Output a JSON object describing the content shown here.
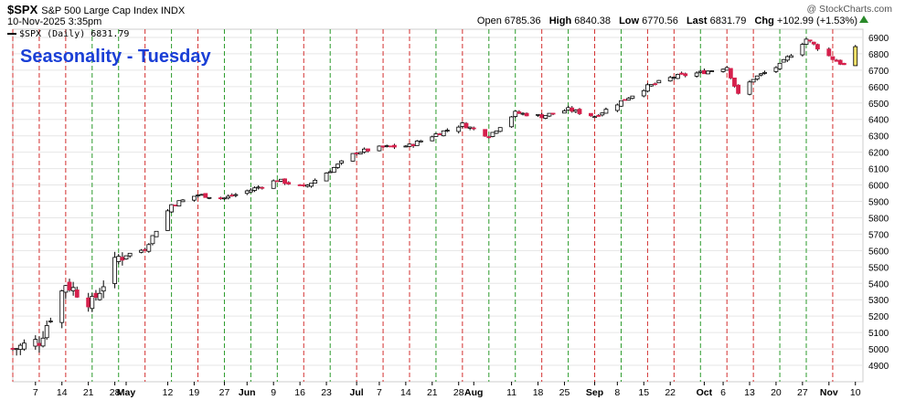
{
  "header": {
    "symbol": "$SPX",
    "description": "S&P 500 Large Cap Index INDX",
    "datetime": "10-Nov-2025 3:35pm",
    "brand": "@ StockCharts.com",
    "open_label": "Open",
    "open": "6785.36",
    "high_label": "High",
    "high": "6840.38",
    "low_label": "Low",
    "low": "6770.56",
    "last_label": "Last",
    "last": "6831.79",
    "chg_label": "Chg",
    "chg": "+102.99 (+1.53%)"
  },
  "legend": {
    "text": "$SPX (Daily) 6831.79"
  },
  "overlay_title": "Seasonality - Tuesday",
  "colors": {
    "up": "#ffffff",
    "down": "#d6204c",
    "outline": "#000000",
    "green_line": "#2a9a2a",
    "red_line": "#d32f2f",
    "grid": "#e6e6e6",
    "last_bar": "#f5e36a"
  },
  "chart_data": {
    "type": "candlestick",
    "ylim": [
      4800,
      6950
    ],
    "y_ticks": [
      4900,
      5000,
      5100,
      5200,
      5300,
      5400,
      5500,
      5600,
      5700,
      5800,
      5900,
      6000,
      6100,
      6200,
      6300,
      6400,
      6500,
      6600,
      6700,
      6800,
      6900
    ],
    "x_ticks": [
      {
        "label": "7",
        "date": "2025-04-07"
      },
      {
        "label": "14",
        "date": "2025-04-14"
      },
      {
        "label": "21",
        "date": "2025-04-21"
      },
      {
        "label": "28",
        "date": "2025-04-28"
      },
      {
        "label": "May",
        "date": "2025-05-01",
        "bold": true
      },
      {
        "label": "12",
        "date": "2025-05-12"
      },
      {
        "label": "19",
        "date": "2025-05-19"
      },
      {
        "label": "27",
        "date": "2025-05-27"
      },
      {
        "label": "Jun",
        "date": "2025-06-02",
        "bold": true
      },
      {
        "label": "9",
        "date": "2025-06-09"
      },
      {
        "label": "16",
        "date": "2025-06-16"
      },
      {
        "label": "23",
        "date": "2025-06-23"
      },
      {
        "label": "Jul",
        "date": "2025-07-01",
        "bold": true
      },
      {
        "label": "7",
        "date": "2025-07-07"
      },
      {
        "label": "14",
        "date": "2025-07-14"
      },
      {
        "label": "21",
        "date": "2025-07-21"
      },
      {
        "label": "28",
        "date": "2025-07-28"
      },
      {
        "label": "Aug",
        "date": "2025-08-01",
        "bold": true
      },
      {
        "label": "11",
        "date": "2025-08-11"
      },
      {
        "label": "18",
        "date": "2025-08-18"
      },
      {
        "label": "25",
        "date": "2025-08-25"
      },
      {
        "label": "Sep",
        "date": "2025-09-02",
        "bold": true
      },
      {
        "label": "8",
        "date": "2025-09-08"
      },
      {
        "label": "15",
        "date": "2025-09-15"
      },
      {
        "label": "22",
        "date": "2025-09-22"
      },
      {
        "label": "Oct",
        "date": "2025-10-01",
        "bold": true
      },
      {
        "label": "6",
        "date": "2025-10-06"
      },
      {
        "label": "13",
        "date": "2025-10-13"
      },
      {
        "label": "20",
        "date": "2025-10-20"
      },
      {
        "label": "27",
        "date": "2025-10-27"
      },
      {
        "label": "Nov",
        "date": "2025-11-03",
        "bold": true
      },
      {
        "label": "10",
        "date": "2025-11-10"
      }
    ],
    "tuesday_lines": [
      {
        "date": "2025-04-01",
        "color": "red"
      },
      {
        "date": "2025-04-08",
        "color": "red"
      },
      {
        "date": "2025-04-15",
        "color": "red"
      },
      {
        "date": "2025-04-22",
        "color": "green"
      },
      {
        "date": "2025-04-29",
        "color": "green"
      },
      {
        "date": "2025-05-06",
        "color": "red"
      },
      {
        "date": "2025-05-13",
        "color": "green"
      },
      {
        "date": "2025-05-20",
        "color": "red"
      },
      {
        "date": "2025-05-27",
        "color": "green"
      },
      {
        "date": "2025-06-03",
        "color": "green"
      },
      {
        "date": "2025-06-10",
        "color": "green"
      },
      {
        "date": "2025-06-17",
        "color": "red"
      },
      {
        "date": "2025-06-24",
        "color": "green"
      },
      {
        "date": "2025-07-01",
        "color": "red"
      },
      {
        "date": "2025-07-08",
        "color": "red"
      },
      {
        "date": "2025-07-15",
        "color": "red"
      },
      {
        "date": "2025-07-22",
        "color": "green"
      },
      {
        "date": "2025-07-29",
        "color": "red"
      },
      {
        "date": "2025-08-05",
        "color": "green"
      },
      {
        "date": "2025-08-12",
        "color": "green"
      },
      {
        "date": "2025-08-19",
        "color": "red"
      },
      {
        "date": "2025-08-26",
        "color": "green"
      },
      {
        "date": "2025-09-02",
        "color": "red"
      },
      {
        "date": "2025-09-09",
        "color": "green"
      },
      {
        "date": "2025-09-16",
        "color": "red"
      },
      {
        "date": "2025-09-23",
        "color": "red"
      },
      {
        "date": "2025-09-30",
        "color": "green"
      },
      {
        "date": "2025-10-07",
        "color": "red"
      },
      {
        "date": "2025-10-14",
        "color": "red"
      },
      {
        "date": "2025-10-21",
        "color": "green"
      },
      {
        "date": "2025-10-28",
        "color": "green"
      },
      {
        "date": "2025-11-04",
        "color": "red"
      }
    ],
    "key_levels": [
      {
        "date": "2025-04-01",
        "close": 5000
      },
      {
        "date": "2025-04-08",
        "close": 5050
      },
      {
        "date": "2025-04-15",
        "close": 5400
      },
      {
        "date": "2025-04-22",
        "close": 5280
      },
      {
        "date": "2025-04-29",
        "close": 5560
      },
      {
        "date": "2025-05-06",
        "close": 5610
      },
      {
        "date": "2025-05-13",
        "close": 5880
      },
      {
        "date": "2025-05-20",
        "close": 5940
      },
      {
        "date": "2025-05-27",
        "close": 5920
      },
      {
        "date": "2025-06-03",
        "close": 5970
      },
      {
        "date": "2025-06-10",
        "close": 6030
      },
      {
        "date": "2025-06-17",
        "close": 5985
      },
      {
        "date": "2025-06-24",
        "close": 6090
      },
      {
        "date": "2025-07-01",
        "close": 6200
      },
      {
        "date": "2025-07-08",
        "close": 6230
      },
      {
        "date": "2025-07-15",
        "close": 6240
      },
      {
        "date": "2025-07-22",
        "close": 6310
      },
      {
        "date": "2025-07-29",
        "close": 6370
      },
      {
        "date": "2025-08-05",
        "close": 6300
      },
      {
        "date": "2025-08-12",
        "close": 6440
      },
      {
        "date": "2025-08-19",
        "close": 6420
      },
      {
        "date": "2025-08-26",
        "close": 6460
      },
      {
        "date": "2025-09-02",
        "close": 6420
      },
      {
        "date": "2025-09-09",
        "close": 6510
      },
      {
        "date": "2025-09-16",
        "close": 6600
      },
      {
        "date": "2025-09-23",
        "close": 6660
      },
      {
        "date": "2025-09-30",
        "close": 6685
      },
      {
        "date": "2025-10-07",
        "close": 6720
      },
      {
        "date": "2025-10-10",
        "close": 6550
      },
      {
        "date": "2025-10-14",
        "close": 6650
      },
      {
        "date": "2025-10-21",
        "close": 6730
      },
      {
        "date": "2025-10-28",
        "close": 6890
      },
      {
        "date": "2025-11-04",
        "close": 6770
      },
      {
        "date": "2025-11-07",
        "close": 6730
      },
      {
        "date": "2025-11-10",
        "close": 6832
      }
    ]
  }
}
